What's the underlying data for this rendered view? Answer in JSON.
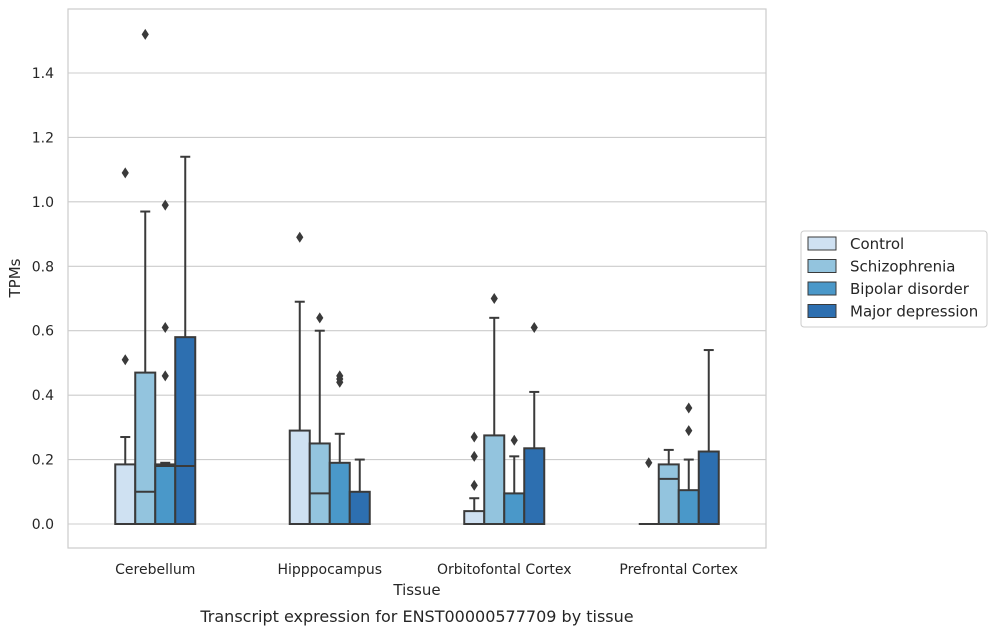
{
  "caption": "Transcript expression for ENST00000577709 by tissue",
  "chart_data": {
    "type": "box",
    "title": "",
    "xlabel": "Tissue",
    "ylabel": "TPMs",
    "ylim": [
      -0.075,
      1.6
    ],
    "yticks": [
      0.0,
      0.2,
      0.4,
      0.6,
      0.8,
      1.0,
      1.2,
      1.4
    ],
    "ytick_labels": [
      "0.0",
      "0.2",
      "0.4",
      "0.6",
      "0.8",
      "1.0",
      "1.2",
      "1.4"
    ],
    "grid": "horizontal",
    "legend_position": "right",
    "categories": [
      "Cerebellum",
      "Hipppocampus",
      "Orbitofontal Cortex",
      "Prefrontal Cortex"
    ],
    "series": [
      {
        "name": "Control",
        "color": "#cfe1f2",
        "boxes": [
          {
            "whisker_low": 0.0,
            "q1": 0.0,
            "median": 0.0,
            "q3": 0.185,
            "whisker_high": 0.27,
            "outliers": [
              0.51,
              1.09
            ]
          },
          {
            "whisker_low": 0.0,
            "q1": 0.0,
            "median": 0.0,
            "q3": 0.29,
            "whisker_high": 0.69,
            "outliers": [
              0.89
            ]
          },
          {
            "whisker_low": 0.0,
            "q1": 0.0,
            "median": 0.0,
            "q3": 0.04,
            "whisker_high": 0.08,
            "outliers": [
              0.12,
              0.21,
              0.27
            ]
          },
          {
            "whisker_low": 0.0,
            "q1": 0.0,
            "median": 0.0,
            "q3": 0.0,
            "whisker_high": 0.0,
            "outliers": [
              0.19
            ]
          }
        ]
      },
      {
        "name": "Schizophrenia",
        "color": "#93c4de",
        "boxes": [
          {
            "whisker_low": 0.0,
            "q1": 0.0,
            "median": 0.1,
            "q3": 0.47,
            "whisker_high": 0.97,
            "outliers": [
              1.52
            ]
          },
          {
            "whisker_low": 0.0,
            "q1": 0.0,
            "median": 0.095,
            "q3": 0.25,
            "whisker_high": 0.6,
            "outliers": [
              0.64
            ]
          },
          {
            "whisker_low": 0.0,
            "q1": 0.0,
            "median": 0.0,
            "q3": 0.275,
            "whisker_high": 0.64,
            "outliers": [
              0.7
            ]
          },
          {
            "whisker_low": 0.0,
            "q1": 0.0,
            "median": 0.14,
            "q3": 0.185,
            "whisker_high": 0.23,
            "outliers": []
          }
        ]
      },
      {
        "name": "Bipolar disorder",
        "color": "#4a98c9",
        "boxes": [
          {
            "whisker_low": 0.0,
            "q1": 0.0,
            "median": 0.18,
            "q3": 0.185,
            "whisker_high": 0.19,
            "outliers": [
              0.46,
              0.61,
              0.99
            ]
          },
          {
            "whisker_low": 0.0,
            "q1": 0.0,
            "median": 0.0,
            "q3": 0.19,
            "whisker_high": 0.28,
            "outliers": [
              0.44,
              0.45,
              0.46
            ]
          },
          {
            "whisker_low": 0.0,
            "q1": 0.0,
            "median": 0.0,
            "q3": 0.095,
            "whisker_high": 0.21,
            "outliers": [
              0.26
            ]
          },
          {
            "whisker_low": 0.0,
            "q1": 0.0,
            "median": 0.0,
            "q3": 0.105,
            "whisker_high": 0.2,
            "outliers": [
              0.29,
              0.36
            ]
          }
        ]
      },
      {
        "name": "Major depression",
        "color": "#2d6fb0",
        "boxes": [
          {
            "whisker_low": 0.0,
            "q1": 0.0,
            "median": 0.18,
            "q3": 0.58,
            "whisker_high": 1.14,
            "outliers": []
          },
          {
            "whisker_low": 0.0,
            "q1": 0.0,
            "median": 0.0,
            "q3": 0.1,
            "whisker_high": 0.2,
            "outliers": []
          },
          {
            "whisker_low": 0.0,
            "q1": 0.0,
            "median": 0.0,
            "q3": 0.235,
            "whisker_high": 0.41,
            "outliers": [
              0.61
            ]
          },
          {
            "whisker_low": 0.0,
            "q1": 0.0,
            "median": 0.0,
            "q3": 0.225,
            "whisker_high": 0.54,
            "outliers": []
          }
        ]
      }
    ]
  }
}
